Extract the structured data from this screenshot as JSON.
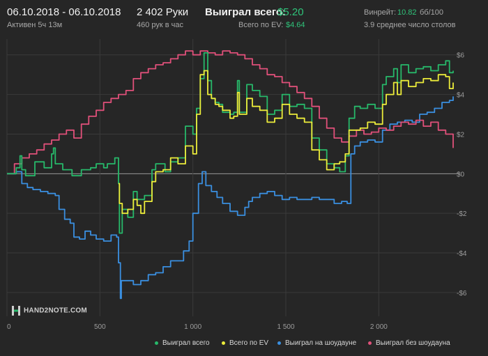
{
  "header": {
    "date_range": "06.10.2018 - 06.10.2018",
    "active_time": "Активен 5ч 13м",
    "hands": "2 402 Руки",
    "hands_per_hour": "460 рук в час",
    "won_total_label": "Выиграл всего:",
    "won_total_value": "$5.20",
    "total_ev_label": "Всего по EV:",
    "total_ev_value": "$4.64",
    "winrate_label": "Винрейт:",
    "winrate_value": "10.82",
    "winrate_unit": "бб/100",
    "avg_tables": "3.9 среднее число столов"
  },
  "logo": {
    "text": "HAND2NOTE.COM"
  },
  "colors": {
    "background": "#262626",
    "grid": "#3a3a3a",
    "zero_line": "#9a9a9a",
    "won_total": "#27b86a",
    "ev": "#ecec3a",
    "showdown": "#3a8fe0",
    "non_showdown": "#e0507a"
  },
  "chart_data": {
    "type": "line",
    "title": "",
    "xlabel": "",
    "ylabel": "",
    "xlim": [
      0,
      2400
    ],
    "ylim": [
      -7.2,
      6.8
    ],
    "x_ticks": [
      0,
      500,
      1000,
      1500,
      2000
    ],
    "x_tick_labels": [
      "0",
      "500",
      "1 000",
      "1 500",
      "2 000"
    ],
    "y_ticks": [
      6,
      4,
      2,
      0,
      -2,
      -4,
      -6
    ],
    "y_tick_labels": [
      "$6",
      "$4",
      "$2",
      "$0",
      "-$2",
      "-$4",
      "-$6"
    ],
    "grid": true,
    "legend_position": "bottom",
    "series": [
      {
        "name": "Выиграл всего",
        "color": "#27b86a",
        "points": [
          [
            0,
            0
          ],
          [
            50,
            0.3
          ],
          [
            70,
            0.9
          ],
          [
            80,
            0.2
          ],
          [
            100,
            -0.1
          ],
          [
            150,
            0.6
          ],
          [
            200,
            0.3
          ],
          [
            240,
            1.0
          ],
          [
            250,
            1.3
          ],
          [
            260,
            0.5
          ],
          [
            300,
            0.2
          ],
          [
            350,
            -0.1
          ],
          [
            400,
            0.2
          ],
          [
            450,
            0.3
          ],
          [
            480,
            0.5
          ],
          [
            520,
            0.3
          ],
          [
            540,
            0.5
          ],
          [
            580,
            0.8
          ],
          [
            600,
            -0.5
          ],
          [
            605,
            -3.0
          ],
          [
            620,
            -1.8
          ],
          [
            650,
            -2.2
          ],
          [
            680,
            -0.9
          ],
          [
            700,
            -1.3
          ],
          [
            740,
            -1.1
          ],
          [
            780,
            0.2
          ],
          [
            800,
            0.5
          ],
          [
            850,
            0.1
          ],
          [
            880,
            0.6
          ],
          [
            920,
            0.8
          ],
          [
            960,
            2.4
          ],
          [
            1000,
            2.0
          ],
          [
            1020,
            3.3
          ],
          [
            1040,
            4.8
          ],
          [
            1060,
            6.1
          ],
          [
            1080,
            4.7
          ],
          [
            1100,
            3.8
          ],
          [
            1120,
            3.6
          ],
          [
            1140,
            3.5
          ],
          [
            1160,
            3.1
          ],
          [
            1200,
            3.0
          ],
          [
            1220,
            3.1
          ],
          [
            1240,
            4.7
          ],
          [
            1250,
            3.1
          ],
          [
            1290,
            4.5
          ],
          [
            1320,
            4.2
          ],
          [
            1360,
            3.9
          ],
          [
            1400,
            3.0
          ],
          [
            1440,
            3.2
          ],
          [
            1480,
            4.0
          ],
          [
            1520,
            3.4
          ],
          [
            1560,
            3.5
          ],
          [
            1600,
            3.3
          ],
          [
            1640,
            1.8
          ],
          [
            1680,
            1.2
          ],
          [
            1720,
            0.5
          ],
          [
            1760,
            0.3
          ],
          [
            1790,
            0.1
          ],
          [
            1820,
            0.9
          ],
          [
            1840,
            2.8
          ],
          [
            1870,
            3.4
          ],
          [
            1900,
            3.3
          ],
          [
            1940,
            3.5
          ],
          [
            1980,
            3.3
          ],
          [
            2020,
            4.5
          ],
          [
            2040,
            4.9
          ],
          [
            2080,
            5.3
          ],
          [
            2100,
            4.6
          ],
          [
            2120,
            5.5
          ],
          [
            2160,
            5.1
          ],
          [
            2200,
            5.3
          ],
          [
            2240,
            5.4
          ],
          [
            2280,
            5.2
          ],
          [
            2320,
            5.5
          ],
          [
            2360,
            5.7
          ],
          [
            2380,
            5.1
          ],
          [
            2400,
            5.2
          ]
        ]
      },
      {
        "name": "Всего по EV",
        "color": "#ecec3a",
        "points": [
          [
            600,
            -0.5
          ],
          [
            605,
            -1.5
          ],
          [
            620,
            -2.0
          ],
          [
            650,
            -1.8
          ],
          [
            680,
            -1.3
          ],
          [
            700,
            -1.6
          ],
          [
            720,
            -2.0
          ],
          [
            740,
            -1.4
          ],
          [
            780,
            -0.4
          ],
          [
            800,
            0.1
          ],
          [
            840,
            0.2
          ],
          [
            880,
            0.8
          ],
          [
            920,
            0.5
          ],
          [
            960,
            1.4
          ],
          [
            1000,
            1.0
          ],
          [
            1020,
            3.0
          ],
          [
            1040,
            5.0
          ],
          [
            1060,
            5.2
          ],
          [
            1080,
            4.0
          ],
          [
            1100,
            3.8
          ],
          [
            1120,
            3.5
          ],
          [
            1140,
            3.4
          ],
          [
            1160,
            3.2
          ],
          [
            1200,
            2.8
          ],
          [
            1220,
            2.9
          ],
          [
            1240,
            4.1
          ],
          [
            1250,
            3.0
          ],
          [
            1290,
            3.8
          ],
          [
            1320,
            3.4
          ],
          [
            1360,
            3.2
          ],
          [
            1400,
            2.6
          ],
          [
            1440,
            2.8
          ],
          [
            1480,
            3.5
          ],
          [
            1520,
            3.0
          ],
          [
            1560,
            2.8
          ],
          [
            1600,
            2.6
          ],
          [
            1640,
            1.2
          ],
          [
            1680,
            0.7
          ],
          [
            1720,
            0.2
          ],
          [
            1760,
            0.5
          ],
          [
            1790,
            0.6
          ],
          [
            1820,
            1.0
          ],
          [
            1840,
            2.2
          ],
          [
            1870,
            2.2
          ],
          [
            1900,
            2.3
          ],
          [
            1940,
            2.6
          ],
          [
            1980,
            2.5
          ],
          [
            2020,
            3.5
          ],
          [
            2040,
            4.0
          ],
          [
            2080,
            4.6
          ],
          [
            2100,
            4.0
          ],
          [
            2120,
            4.7
          ],
          [
            2160,
            4.4
          ],
          [
            2200,
            4.6
          ],
          [
            2240,
            4.8
          ],
          [
            2280,
            4.7
          ],
          [
            2320,
            5.0
          ],
          [
            2360,
            4.9
          ],
          [
            2380,
            4.3
          ],
          [
            2400,
            4.6
          ]
        ]
      },
      {
        "name": "Выиграл на шоудауне",
        "color": "#3a8fe0",
        "points": [
          [
            0,
            0
          ],
          [
            50,
            0.1
          ],
          [
            80,
            -0.5
          ],
          [
            110,
            -0.7
          ],
          [
            140,
            -0.8
          ],
          [
            180,
            -0.9
          ],
          [
            220,
            -1.0
          ],
          [
            260,
            -1.1
          ],
          [
            280,
            -1.8
          ],
          [
            310,
            -2.3
          ],
          [
            340,
            -2.5
          ],
          [
            360,
            -3.2
          ],
          [
            390,
            -3.3
          ],
          [
            420,
            -2.9
          ],
          [
            450,
            -3.1
          ],
          [
            480,
            -3.3
          ],
          [
            520,
            -3.4
          ],
          [
            560,
            -3.1
          ],
          [
            590,
            -3.2
          ],
          [
            600,
            -4.5
          ],
          [
            610,
            -6.3
          ],
          [
            615,
            -5.4
          ],
          [
            640,
            -5.4
          ],
          [
            680,
            -5.6
          ],
          [
            720,
            -5.4
          ],
          [
            760,
            -5.1
          ],
          [
            800,
            -5.0
          ],
          [
            840,
            -4.7
          ],
          [
            880,
            -4.4
          ],
          [
            920,
            -4.4
          ],
          [
            950,
            -3.9
          ],
          [
            980,
            -3.4
          ],
          [
            1000,
            -2.0
          ],
          [
            1030,
            -0.5
          ],
          [
            1050,
            0.1
          ],
          [
            1070,
            -0.6
          ],
          [
            1100,
            -0.9
          ],
          [
            1130,
            -1.2
          ],
          [
            1160,
            -1.5
          ],
          [
            1200,
            -1.9
          ],
          [
            1240,
            -2.1
          ],
          [
            1280,
            -1.7
          ],
          [
            1300,
            -1.4
          ],
          [
            1320,
            -1.2
          ],
          [
            1360,
            -1.0
          ],
          [
            1400,
            -0.9
          ],
          [
            1440,
            -1.1
          ],
          [
            1480,
            -1.3
          ],
          [
            1520,
            -1.2
          ],
          [
            1560,
            -1.3
          ],
          [
            1600,
            -1.3
          ],
          [
            1640,
            -1.2
          ],
          [
            1680,
            -1.3
          ],
          [
            1720,
            -1.3
          ],
          [
            1760,
            -1.5
          ],
          [
            1800,
            -1.4
          ],
          [
            1830,
            -1.5
          ],
          [
            1850,
            1.0
          ],
          [
            1870,
            1.4
          ],
          [
            1900,
            1.6
          ],
          [
            1940,
            1.7
          ],
          [
            1980,
            1.6
          ],
          [
            2020,
            2.2
          ],
          [
            2060,
            2.5
          ],
          [
            2100,
            2.6
          ],
          [
            2140,
            2.7
          ],
          [
            2180,
            2.6
          ],
          [
            2220,
            3.0
          ],
          [
            2260,
            3.1
          ],
          [
            2300,
            3.3
          ],
          [
            2340,
            3.6
          ],
          [
            2380,
            3.7
          ],
          [
            2400,
            3.9
          ]
        ]
      },
      {
        "name": "Выиграл без шоудауна",
        "color": "#e0507a",
        "points": [
          [
            0,
            0
          ],
          [
            40,
            0.5
          ],
          [
            80,
            0.8
          ],
          [
            120,
            1.0
          ],
          [
            160,
            1.2
          ],
          [
            200,
            1.5
          ],
          [
            240,
            1.7
          ],
          [
            280,
            2.0
          ],
          [
            320,
            2.2
          ],
          [
            360,
            1.8
          ],
          [
            400,
            2.5
          ],
          [
            440,
            2.9
          ],
          [
            480,
            3.2
          ],
          [
            520,
            3.6
          ],
          [
            560,
            3.8
          ],
          [
            600,
            4.0
          ],
          [
            640,
            4.2
          ],
          [
            680,
            4.8
          ],
          [
            720,
            5.1
          ],
          [
            760,
            5.3
          ],
          [
            800,
            5.5
          ],
          [
            840,
            5.6
          ],
          [
            880,
            5.8
          ],
          [
            920,
            6.0
          ],
          [
            960,
            6.2
          ],
          [
            1000,
            6.0
          ],
          [
            1040,
            6.2
          ],
          [
            1080,
            6.1
          ],
          [
            1120,
            6.0
          ],
          [
            1160,
            6.2
          ],
          [
            1200,
            6.1
          ],
          [
            1240,
            6.0
          ],
          [
            1280,
            5.8
          ],
          [
            1320,
            5.5
          ],
          [
            1360,
            5.3
          ],
          [
            1400,
            5.0
          ],
          [
            1440,
            4.9
          ],
          [
            1480,
            4.6
          ],
          [
            1520,
            4.4
          ],
          [
            1560,
            4.1
          ],
          [
            1600,
            3.8
          ],
          [
            1640,
            3.4
          ],
          [
            1680,
            2.8
          ],
          [
            1720,
            2.3
          ],
          [
            1760,
            1.8
          ],
          [
            1800,
            1.6
          ],
          [
            1840,
            1.9
          ],
          [
            1880,
            2.2
          ],
          [
            1920,
            2.0
          ],
          [
            1960,
            2.1
          ],
          [
            2000,
            2.3
          ],
          [
            2040,
            2.2
          ],
          [
            2080,
            2.4
          ],
          [
            2120,
            2.6
          ],
          [
            2160,
            2.5
          ],
          [
            2200,
            2.7
          ],
          [
            2240,
            2.4
          ],
          [
            2280,
            2.6
          ],
          [
            2320,
            2.2
          ],
          [
            2360,
            2.0
          ],
          [
            2400,
            1.3
          ]
        ]
      }
    ]
  }
}
